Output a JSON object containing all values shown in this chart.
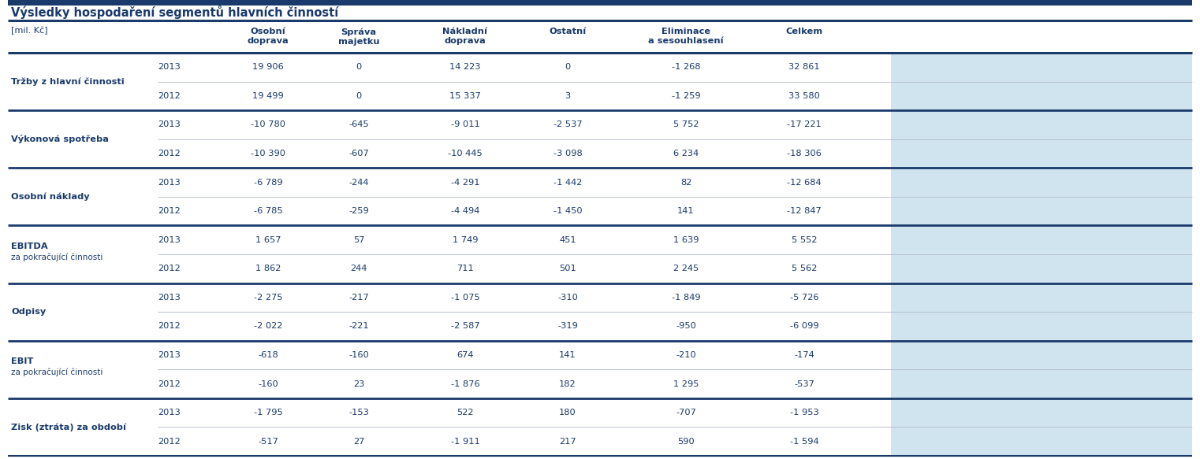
{
  "title": "Výsledky hospodaření segmentů hlavních činností",
  "unit_label": "[mil. Kč]",
  "rows": [
    {
      "label": "Tržby z hlavní činnosti",
      "label2": "",
      "bold": true,
      "2013": [
        "19 906",
        "0",
        "14 223",
        "0",
        "-1 268",
        "32 861"
      ],
      "2012": [
        "19 499",
        "0",
        "15 337",
        "3",
        "-1 259",
        "33 580"
      ]
    },
    {
      "label": "Výkonová spotřeba",
      "label2": "",
      "bold": true,
      "2013": [
        "-10 780",
        "-645",
        "-9 011",
        "-2 537",
        "5 752",
        "-17 221"
      ],
      "2012": [
        "-10 390",
        "-607",
        "-10 445",
        "-3 098",
        "6 234",
        "-18 306"
      ]
    },
    {
      "label": "Osobní náklady",
      "label2": "",
      "bold": true,
      "2013": [
        "-6 789",
        "-244",
        "-4 291",
        "-1 442",
        "82",
        "-12 684"
      ],
      "2012": [
        "-6 785",
        "-259",
        "-4 494",
        "-1 450",
        "141",
        "-12 847"
      ]
    },
    {
      "label": "EBITDA",
      "label2": "za pokračující činnosti",
      "bold": true,
      "2013": [
        "1 657",
        "57",
        "1 749",
        "451",
        "1 639",
        "5 552"
      ],
      "2012": [
        "1 862",
        "244",
        "711",
        "501",
        "2 245",
        "5 562"
      ]
    },
    {
      "label": "Odpisy",
      "label2": "",
      "bold": true,
      "2013": [
        "-2 275",
        "-217",
        "-1 075",
        "-310",
        "-1 849",
        "-5 726"
      ],
      "2012": [
        "-2 022",
        "-221",
        "-2 587",
        "-319",
        "-950",
        "-6 099"
      ]
    },
    {
      "label": "EBIT",
      "label2": "za pokračující činnosti",
      "bold": true,
      "2013": [
        "-618",
        "-160",
        "674",
        "141",
        "-210",
        "-174"
      ],
      "2012": [
        "-160",
        "23",
        "-1 876",
        "182",
        "1 295",
        "-537"
      ]
    },
    {
      "label": "Zisk (ztráta) za období",
      "label2": "",
      "bold": true,
      "2013": [
        "-1 795",
        "-153",
        "522",
        "180",
        "-707",
        "-1 953"
      ],
      "2012": [
        "-517",
        "27",
        "-1 911",
        "217",
        "590",
        "-1 594"
      ]
    }
  ],
  "col_headers": [
    "Osobní\ndoprava",
    "Správa\nmajetku",
    "Nákladní\ndoprava",
    "Ostatní",
    "Eliminace\na sesouhlasení",
    "Celkem"
  ],
  "bold_label_color": "#1a3a6b",
  "data_color": "#1a3a6b",
  "thick_line_color": "#1a3a6b",
  "thin_line_color": "#b0b8c8",
  "celkem_bg": "#d0e4f0",
  "top_bar_color": "#1a3a6b"
}
